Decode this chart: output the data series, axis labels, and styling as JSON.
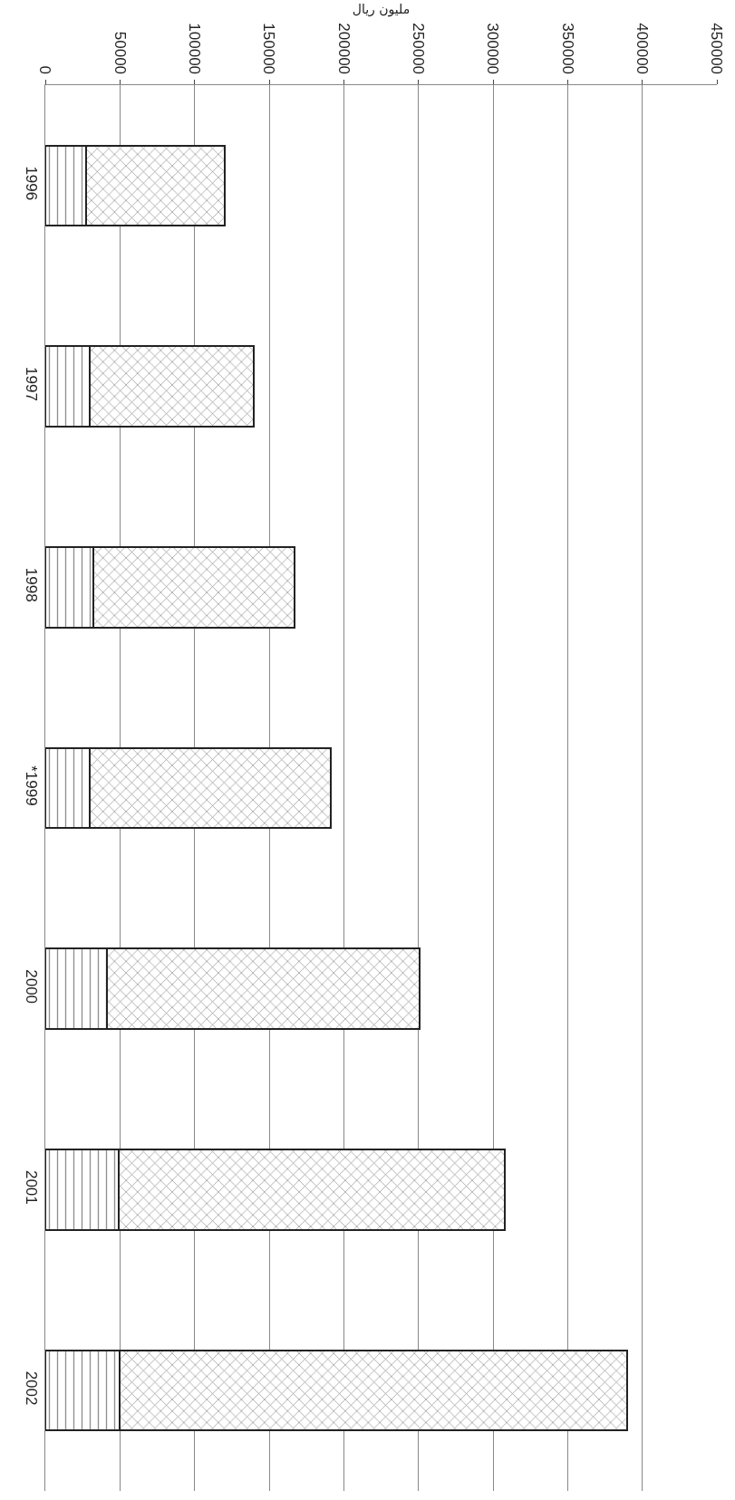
{
  "chart_data": {
    "type": "bar",
    "orientation": "horizontal",
    "stacked": true,
    "xlabel": "مليون ريال",
    "categories": [
      "1996",
      "1997",
      "1998",
      "*1999",
      "2000",
      "2001",
      "2002"
    ],
    "series": [
      {
        "color": "#222222",
        "values": [
          27500,
          29500,
          32000,
          30000,
          41000,
          49000,
          50000
        ]
      },
      {
        "color": "#222222",
        "values": [
          93000,
          110000,
          135000,
          161000,
          210000,
          259000,
          340000
        ]
      }
    ],
    "xlim": [
      0,
      450000
    ],
    "xticks": [
      0,
      50000,
      100000,
      150000,
      200000,
      250000,
      300000,
      350000,
      400000,
      450000
    ],
    "grid": "x"
  }
}
